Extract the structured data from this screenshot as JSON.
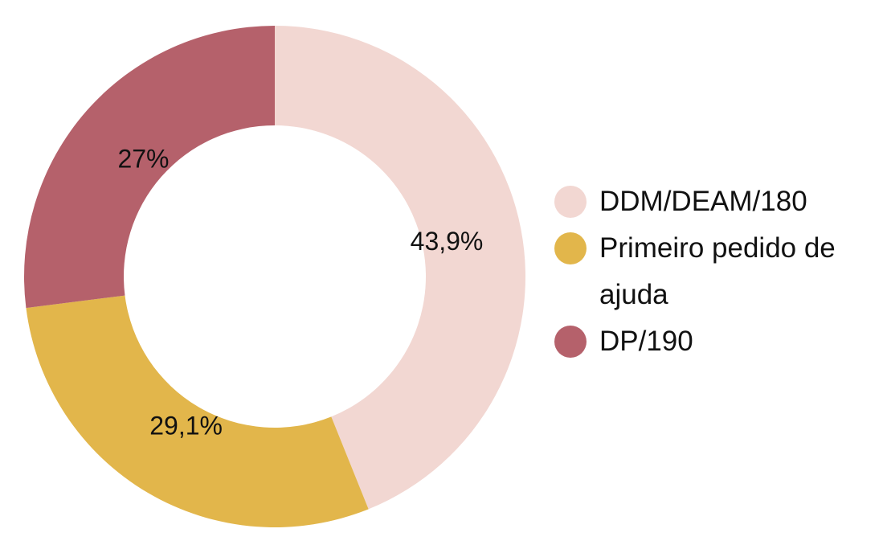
{
  "chart_data": {
    "type": "donut",
    "categories": [
      "DDM/DEAM/180",
      "Primeiro pedido de ajuda",
      "DP/190"
    ],
    "values": [
      43.9,
      29.1,
      27
    ],
    "value_labels": [
      "43,9%",
      "29,1%",
      "27%"
    ],
    "colors": [
      "#f2d7d2",
      "#e2b64b",
      "#b5616b"
    ],
    "legend": "right"
  }
}
